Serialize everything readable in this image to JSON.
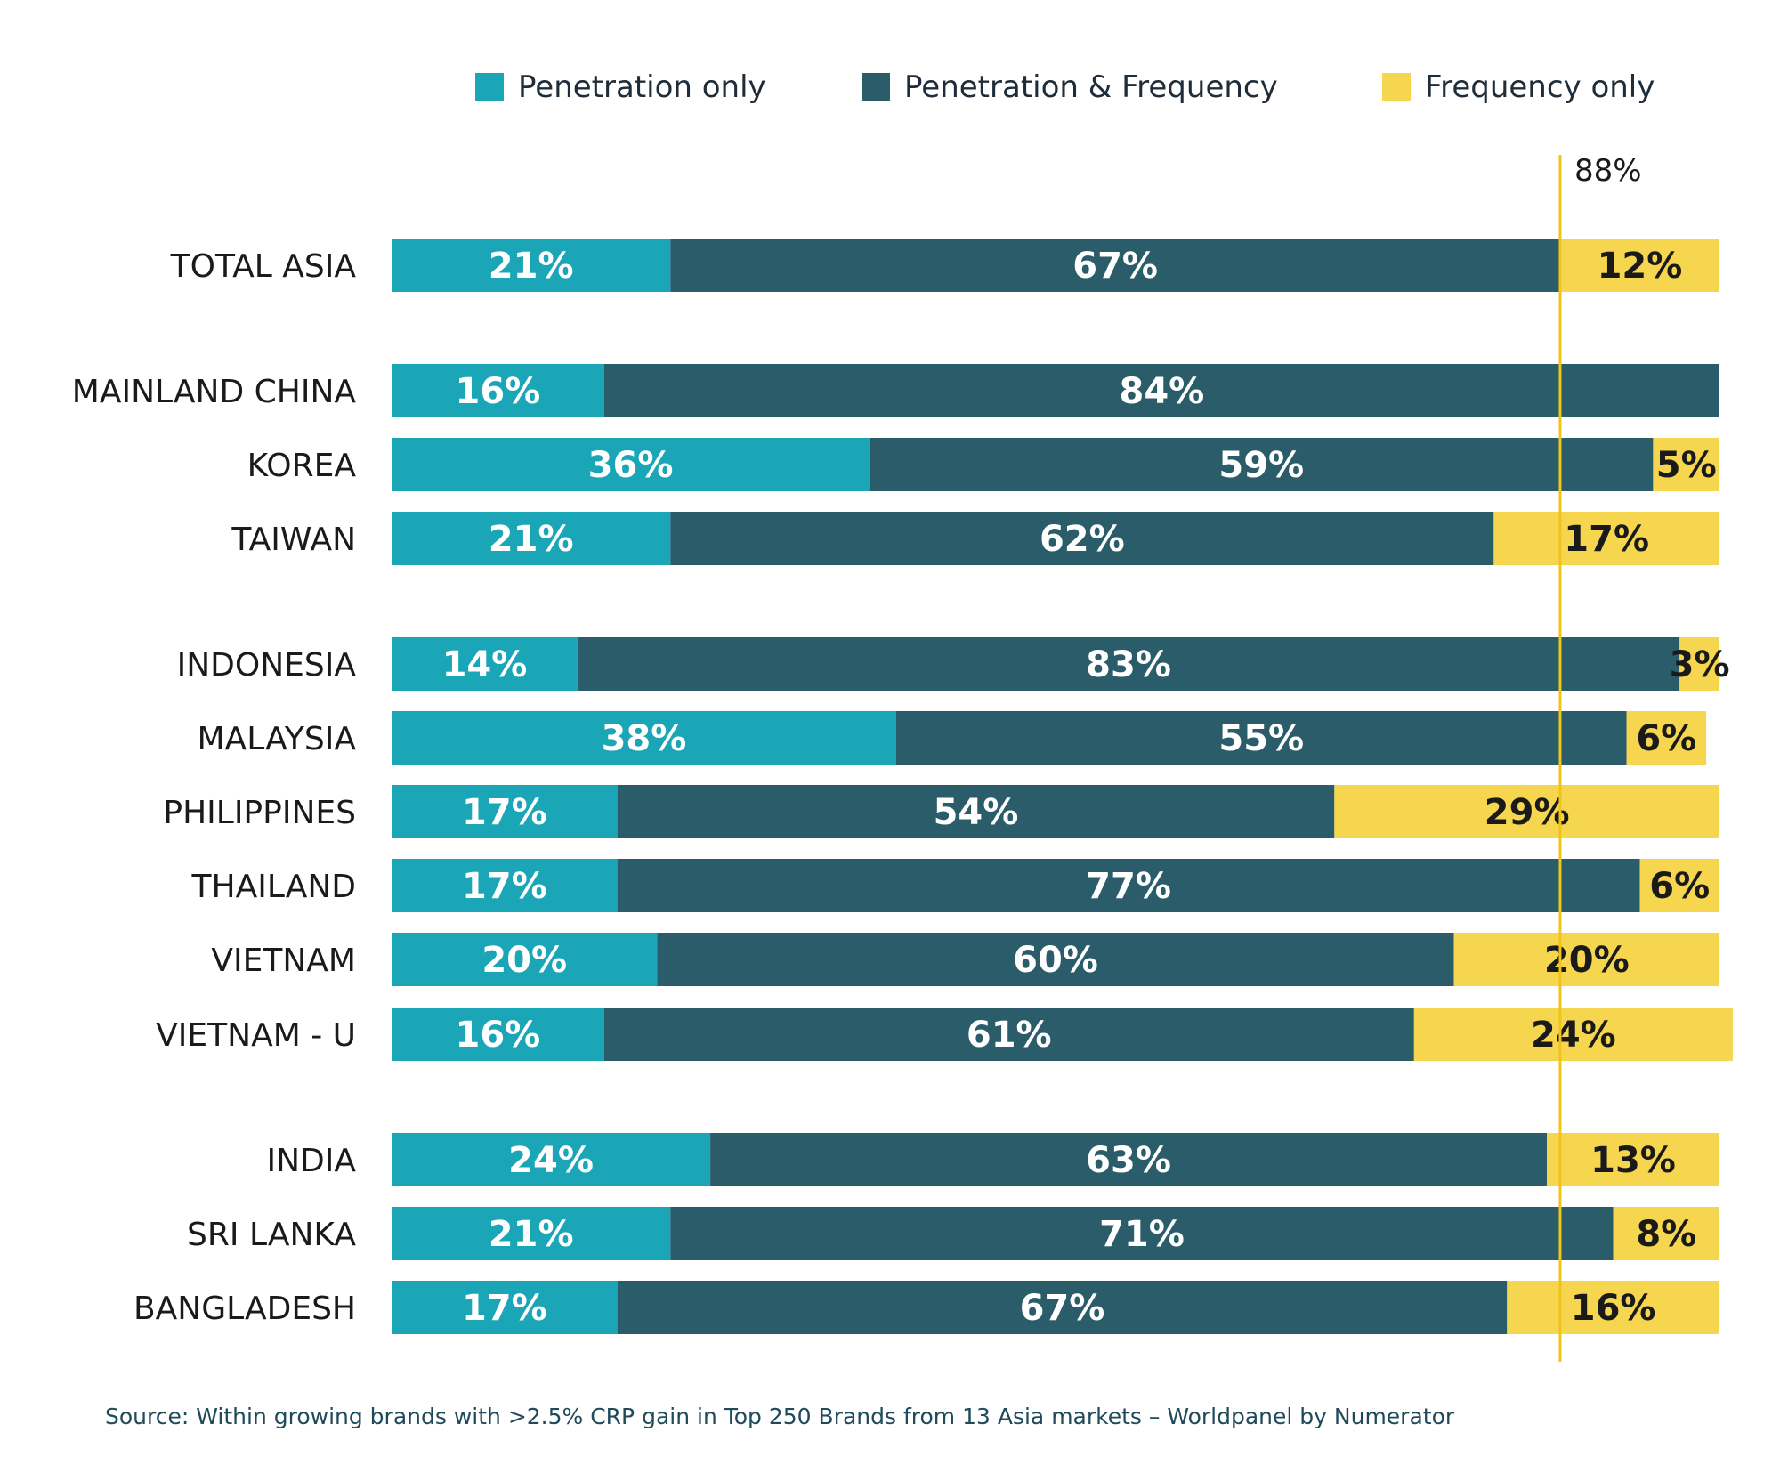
{
  "chart_data": {
    "type": "bar",
    "orientation": "horizontal",
    "stacked": true,
    "categories": [
      "TOTAL ASIA",
      "MAINLAND CHINA",
      "KOREA",
      "TAIWAN",
      "INDONESIA",
      "MALAYSIA",
      "PHILIPPINES",
      "THAILAND",
      "VIETNAM",
      "VIETNAM - U",
      "INDIA",
      "SRI LANKA",
      "BANGLADESH"
    ],
    "series": [
      {
        "name": "Penetration only",
        "color": "#1ba6b8",
        "label_color": "#ffffff",
        "values": [
          21,
          16,
          36,
          21,
          14,
          38,
          17,
          17,
          20,
          16,
          24,
          21,
          17
        ],
        "labels": [
          "21%",
          "16%",
          "36%",
          "21%",
          "14%",
          "38%",
          "17%",
          "17%",
          "20%",
          "16%",
          "24%",
          "21%",
          "17%"
        ]
      },
      {
        "name": "Penetration & Frequency",
        "color": "#2a5d69",
        "label_color": "#ffffff",
        "values": [
          67,
          84,
          59,
          62,
          83,
          55,
          54,
          77,
          60,
          61,
          63,
          71,
          67
        ],
        "labels": [
          "67%",
          "84%",
          "59%",
          "62%",
          "83%",
          "55%",
          "54%",
          "77%",
          "60%",
          "61%",
          "63%",
          "71%",
          "67%"
        ]
      },
      {
        "name": "Frequency only",
        "color": "#f5d64e",
        "label_color": "#1a1a1a",
        "values": [
          12,
          0,
          5,
          17,
          3,
          6,
          29,
          6,
          20,
          24,
          13,
          8,
          16
        ],
        "labels": [
          "12%",
          "",
          "5%",
          "17%",
          "3%",
          "6%",
          "29%",
          "6%",
          "20%",
          "24%",
          "13%",
          "8%",
          "16%"
        ]
      }
    ],
    "xlim": [
      0,
      100
    ],
    "reference_line": {
      "value": 88,
      "label": "88%",
      "color": "#f0c419"
    },
    "legend_position": "top-right",
    "grid": false,
    "source": "Source: Within growing brands with >2.5% CRP gain in Top 250 Brands from 13 Asia markets – Worldpanel by Numerator"
  }
}
